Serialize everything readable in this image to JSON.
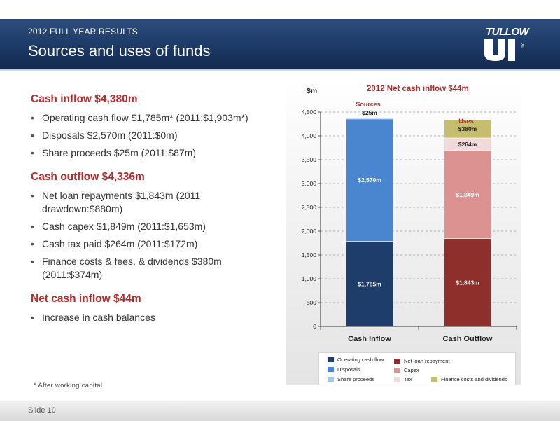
{
  "header": {
    "kicker": "2012 FULL YEAR RESULTS",
    "title": "Sources and uses of funds",
    "logo_word": "TULLOW",
    "logo_plc": "plc"
  },
  "sections": [
    {
      "heading": "Cash inflow $4,380m",
      "bullets": [
        "Operating cash flow $1,785m* (2011:$1,903m*)",
        "Disposals $2,570m (2011:$0m)",
        "Share proceeds $25m (2011:$87m)"
      ]
    },
    {
      "heading": "Cash outflow $4,336m",
      "bullets": [
        "Net loan repayments $1,843m (2011 drawdown:$880m)",
        "Cash capex $1,849m (2011:$1,653m)",
        "Cash tax paid $264m (2011:$172m)",
        "Finance costs & fees, & dividends $380m (2011:$374m)"
      ]
    },
    {
      "heading": "Net cash inflow $44m",
      "bullets": [
        "Increase in cash balances"
      ]
    }
  ],
  "footnote": "* After working capital",
  "footer": {
    "slide": "Slide 10"
  },
  "chart_data": {
    "type": "bar",
    "stacked": true,
    "title": "2012 Net cash inflow $44m",
    "ylabel": "$m",
    "ylim": [
      0,
      4500
    ],
    "yticks": [
      0,
      500,
      1000,
      1500,
      2000,
      2500,
      3000,
      3500,
      4000,
      4500
    ],
    "ytick_labels": [
      "0",
      "500",
      "1,000",
      "1,500",
      "2,000",
      "2,500",
      "3,000",
      "3,500",
      "4,000",
      "4,500"
    ],
    "grid": true,
    "legend_position": "bottom",
    "categories": [
      "Cash Inflow",
      "Cash Outflow"
    ],
    "column_annotations": [
      "Sources",
      "Uses"
    ],
    "series": [
      {
        "name": "Operating cash flow",
        "color": "#1f3d6b",
        "values": [
          1785,
          0
        ],
        "labels": [
          "$1,785m",
          ""
        ]
      },
      {
        "name": "Disposals",
        "color": "#4a86d0",
        "values": [
          2570,
          0
        ],
        "labels": [
          "$2,570m",
          ""
        ]
      },
      {
        "name": "Share proceeds",
        "color": "#a8c6e6",
        "values": [
          25,
          0
        ],
        "labels": [
          "$25m",
          ""
        ]
      },
      {
        "name": "Net loan repayment",
        "color": "#8e2f2b",
        "values": [
          0,
          1843
        ],
        "labels": [
          "",
          "$1,843m"
        ]
      },
      {
        "name": "Capex",
        "color": "#dc9291",
        "values": [
          0,
          1849
        ],
        "labels": [
          "",
          "$1,849m"
        ]
      },
      {
        "name": "Tax",
        "color": "#f2dada",
        "values": [
          0,
          264
        ],
        "labels": [
          "",
          "$264m"
        ]
      },
      {
        "name": "Finance costs and dividends",
        "color": "#c6be6e",
        "values": [
          0,
          380
        ],
        "labels": [
          "",
          "$380m"
        ]
      }
    ]
  }
}
